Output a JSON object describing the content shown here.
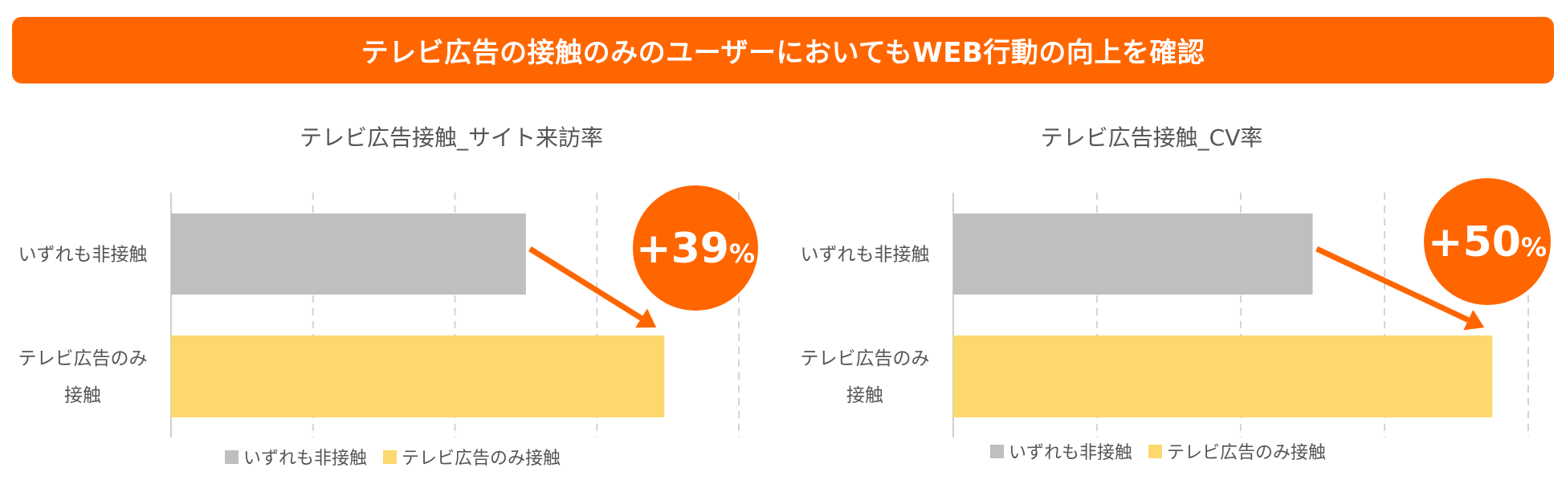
{
  "banner": {
    "text": "テレビ広告の接触のみのユーザーにおいてもWEB行動の向上を確認",
    "color": "#FF6600"
  },
  "chart_data": [
    {
      "type": "bar",
      "orientation": "horizontal",
      "title": "テレビ広告接触_サイト来訪率",
      "categories": [
        "いずれも非接触",
        "テレビ広告のみ接触"
      ],
      "category_lines": [
        [
          "いずれも非接触"
        ],
        [
          "テレビ広告のみ",
          "接触"
        ]
      ],
      "series": [
        {
          "values": [
            100,
            139
          ]
        }
      ],
      "xlim": [
        0,
        160
      ],
      "grid": true,
      "colors": [
        "#BFBFBF",
        "#FCD86D"
      ],
      "legend": [
        "いずれも非接触",
        "テレビ広告のみ接触"
      ],
      "legend_position": "bottom",
      "annotation": {
        "main": "+39",
        "unit": "%",
        "color": "#FF6600"
      }
    },
    {
      "type": "bar",
      "orientation": "horizontal",
      "title": "テレビ広告接触_CV率",
      "categories": [
        "いずれも非接触",
        "テレビ広告のみ接触"
      ],
      "category_lines": [
        [
          "いずれも非接触"
        ],
        [
          "テレビ広告のみ",
          "接触"
        ]
      ],
      "series": [
        {
          "values": [
            100,
            150
          ]
        }
      ],
      "xlim": [
        0,
        160
      ],
      "grid": true,
      "colors": [
        "#BFBFBF",
        "#FCD86D"
      ],
      "legend": [
        "いずれも非接触",
        "テレビ広告のみ接触"
      ],
      "legend_position": "bottom",
      "annotation": {
        "main": "+50",
        "unit": "%",
        "color": "#FF6600"
      }
    }
  ]
}
